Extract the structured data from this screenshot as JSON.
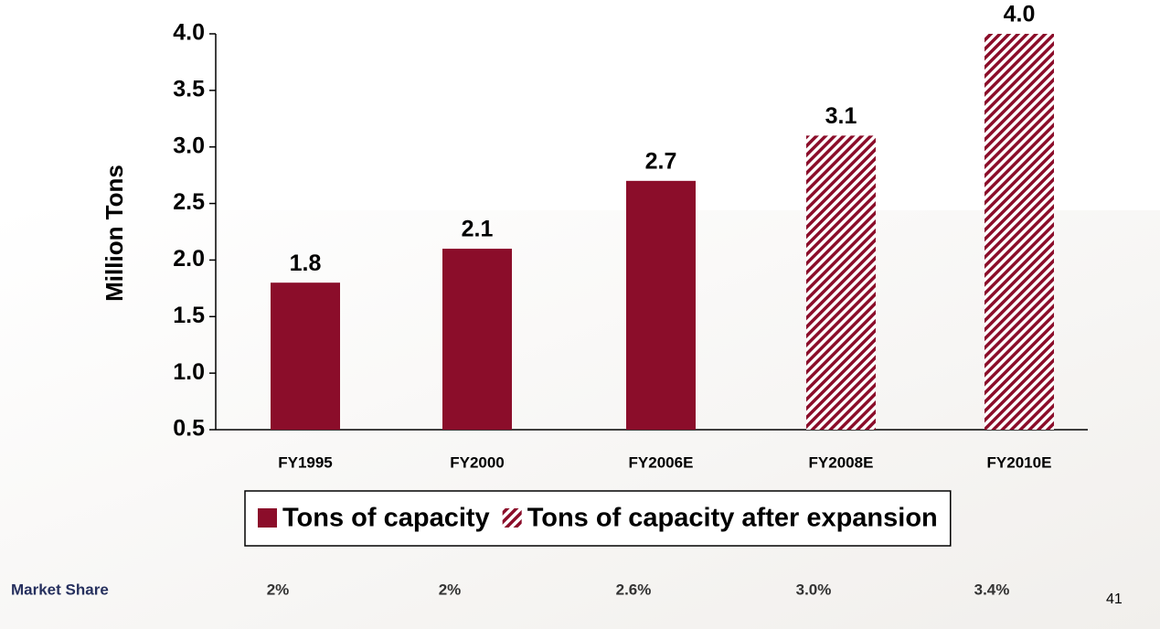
{
  "chart_data": {
    "type": "bar",
    "y_axis_label": "Million Tons",
    "categories": [
      "FY1995",
      "FY2000",
      "FY2006E",
      "FY2008E",
      "FY2010E"
    ],
    "series": [
      {
        "name": "Tons of capacity",
        "color": "#8b0d2a",
        "pattern": "solid",
        "values": [
          1.8,
          2.1,
          2.7,
          null,
          null
        ]
      },
      {
        "name": "Tons of capacity after expansion",
        "color": "#8b0d2a",
        "pattern": "hatch",
        "values": [
          null,
          null,
          null,
          3.1,
          4.0
        ],
        "value_labels": [
          null,
          null,
          null,
          "3.1",
          "4.0"
        ]
      }
    ],
    "ylim": [
      0.5,
      4.0
    ],
    "yticks": [
      0.5,
      {
        "value": 1.0,
        "label": "1.0"
      },
      1.5,
      {
        "value": 2.0,
        "label": "2.0"
      },
      2.5,
      {
        "value": 3.0,
        "label": "3.0"
      },
      3.5,
      {
        "value": 4.0,
        "label": "4.0"
      }
    ],
    "legend": "bottom"
  },
  "market_share": {
    "label": "Market Share",
    "values": [
      "2%",
      "2%",
      "2.6%",
      "3.0%",
      "3.4%"
    ]
  },
  "page_number": "41"
}
